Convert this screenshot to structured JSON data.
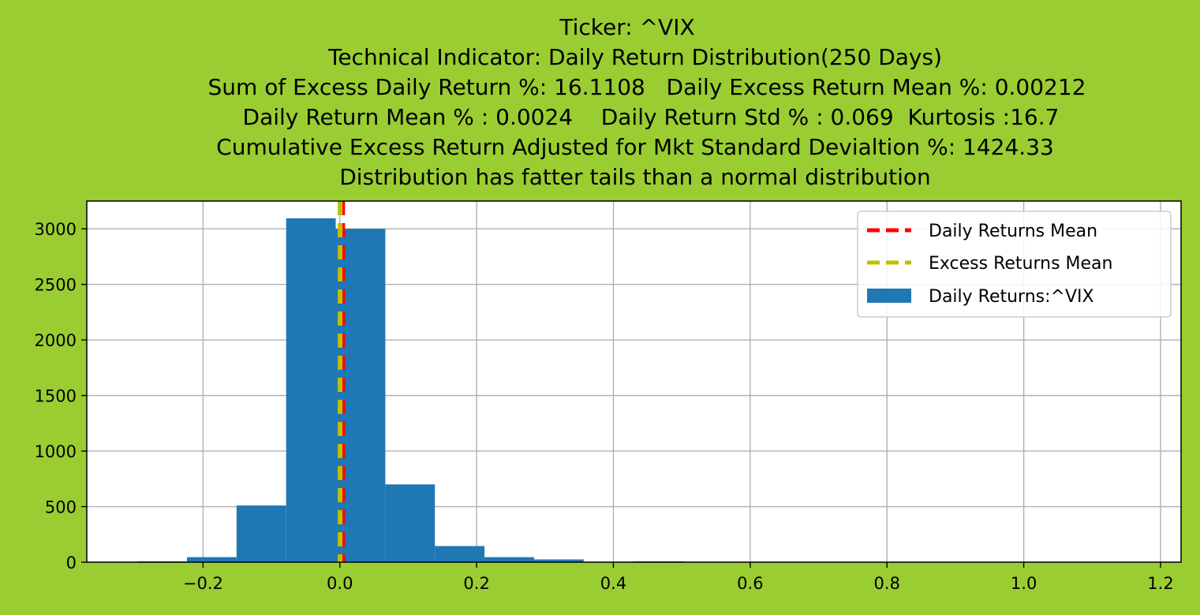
{
  "chart_data": {
    "type": "bar",
    "title_lines": [
      "Ticker: ^VIX",
      "Technical Indicator: Daily Return Distribution(250 Days)",
      "Sum of Excess Daily Return %: 16.1108   Daily Excess Return Mean %: 0.00212",
      "Daily Return Mean % : 0.0024    Daily Return Std % : 0.069  Kurtosis :16.7",
      "Cumulative Excess Return Adjusted for Mkt Standard Devialtion %: 1424.33",
      "Distribution has fatter tails than a normal distribution"
    ],
    "xlabel": "",
    "ylabel": "",
    "xlim": [
      -0.37,
      1.23
    ],
    "ylim": [
      0,
      3250
    ],
    "grid": true,
    "legend_position": "top-right",
    "xticks": [
      -0.2,
      0.0,
      0.2,
      0.4,
      0.6,
      0.8,
      1.0,
      1.2
    ],
    "xtick_labels": [
      "−0.2",
      "0.0",
      "0.2",
      "0.4",
      "0.6",
      "0.8",
      "1.0",
      "1.2"
    ],
    "yticks": [
      0,
      500,
      1000,
      1500,
      2000,
      2500,
      3000
    ],
    "ytick_labels": [
      "0",
      "500",
      "1000",
      "1500",
      "2000",
      "2500",
      "3000"
    ],
    "histogram": {
      "name": "Daily Returns:^VIX",
      "color": "#1f77b4",
      "bin_edges": [
        -0.296,
        -0.2235,
        -0.151,
        -0.0785,
        -0.006,
        0.0665,
        0.139,
        0.2115,
        0.284,
        0.3565,
        0.429,
        0.5015,
        0.574,
        0.6465,
        0.719,
        0.7915,
        0.864,
        0.9365,
        1.009,
        1.0815,
        1.154
      ],
      "counts": [
        8,
        45,
        510,
        3095,
        3000,
        700,
        145,
        45,
        25,
        3,
        8,
        2,
        1,
        1,
        1,
        0,
        0,
        1,
        0,
        1
      ]
    },
    "vlines": [
      {
        "name": "Daily Returns Mean",
        "x": 0.0024,
        "color": "#ff0000",
        "style": "dashed"
      },
      {
        "name": "Excess Returns Mean",
        "x": 0.00212,
        "color": "#bfbf00",
        "style": "dashed"
      }
    ]
  }
}
